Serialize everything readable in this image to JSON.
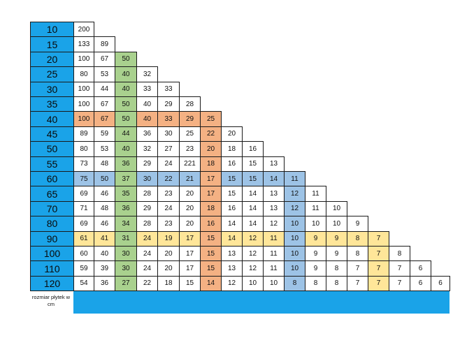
{
  "table": {
    "row_headers": [
      "10",
      "15",
      "20",
      "25",
      "30",
      "35",
      "40",
      "45",
      "50",
      "55",
      "60",
      "65",
      "70",
      "80",
      "90",
      "100",
      "110",
      "120"
    ],
    "column_headers": [
      "10",
      "15",
      "20",
      "25",
      "30",
      "35",
      "40",
      "45",
      "50",
      "55",
      "60",
      "65",
      "70",
      "80",
      "90",
      "100",
      "110",
      "120"
    ],
    "footer_label": "rozmiar płytek w cm",
    "rows": [
      [
        "200"
      ],
      [
        "133",
        "89"
      ],
      [
        "100",
        "67",
        "50"
      ],
      [
        "80",
        "53",
        "40",
        "32"
      ],
      [
        "100",
        "44",
        "40",
        "33",
        "33"
      ],
      [
        "100",
        "67",
        "50",
        "40",
        "29",
        "28"
      ],
      [
        "100",
        "67",
        "50",
        "40",
        "33",
        "29",
        "25"
      ],
      [
        "89",
        "59",
        "44",
        "36",
        "30",
        "25",
        "22",
        "20"
      ],
      [
        "80",
        "53",
        "40",
        "32",
        "27",
        "23",
        "20",
        "18",
        "16"
      ],
      [
        "73",
        "48",
        "36",
        "29",
        "24",
        "221",
        "18",
        "16",
        "15",
        "13"
      ],
      [
        "75",
        "50",
        "37",
        "30",
        "22",
        "21",
        "17",
        "15",
        "15",
        "14",
        "11"
      ],
      [
        "69",
        "46",
        "35",
        "28",
        "23",
        "20",
        "17",
        "15",
        "14",
        "13",
        "12",
        "11"
      ],
      [
        "71",
        "48",
        "36",
        "29",
        "24",
        "20",
        "18",
        "16",
        "14",
        "13",
        "12",
        "11",
        "10"
      ],
      [
        "69",
        "46",
        "34",
        "28",
        "23",
        "20",
        "16",
        "14",
        "14",
        "12",
        "10",
        "10",
        "10",
        "9"
      ],
      [
        "61",
        "41",
        "31",
        "24",
        "19",
        "17",
        "15",
        "14",
        "12",
        "11",
        "10",
        "9",
        "9",
        "8",
        "7"
      ],
      [
        "60",
        "40",
        "30",
        "24",
        "20",
        "17",
        "15",
        "13",
        "12",
        "11",
        "10",
        "9",
        "9",
        "8",
        "7",
        "8"
      ],
      [
        "59",
        "39",
        "30",
        "24",
        "20",
        "17",
        "15",
        "13",
        "12",
        "11",
        "10",
        "9",
        "8",
        "7",
        "7",
        "7",
        "6"
      ],
      [
        "54",
        "36",
        "27",
        "22",
        "18",
        "15",
        "14",
        "12",
        "10",
        "10",
        "8",
        "8",
        "8",
        "7",
        "7",
        "7",
        "6",
        "6"
      ]
    ],
    "highlight_colors": {
      "green": "#a9d18e",
      "orange": "#f4b183",
      "blue": "#9dc3e6",
      "yellow": "#ffe699",
      "header": "#1aa3e8"
    }
  }
}
